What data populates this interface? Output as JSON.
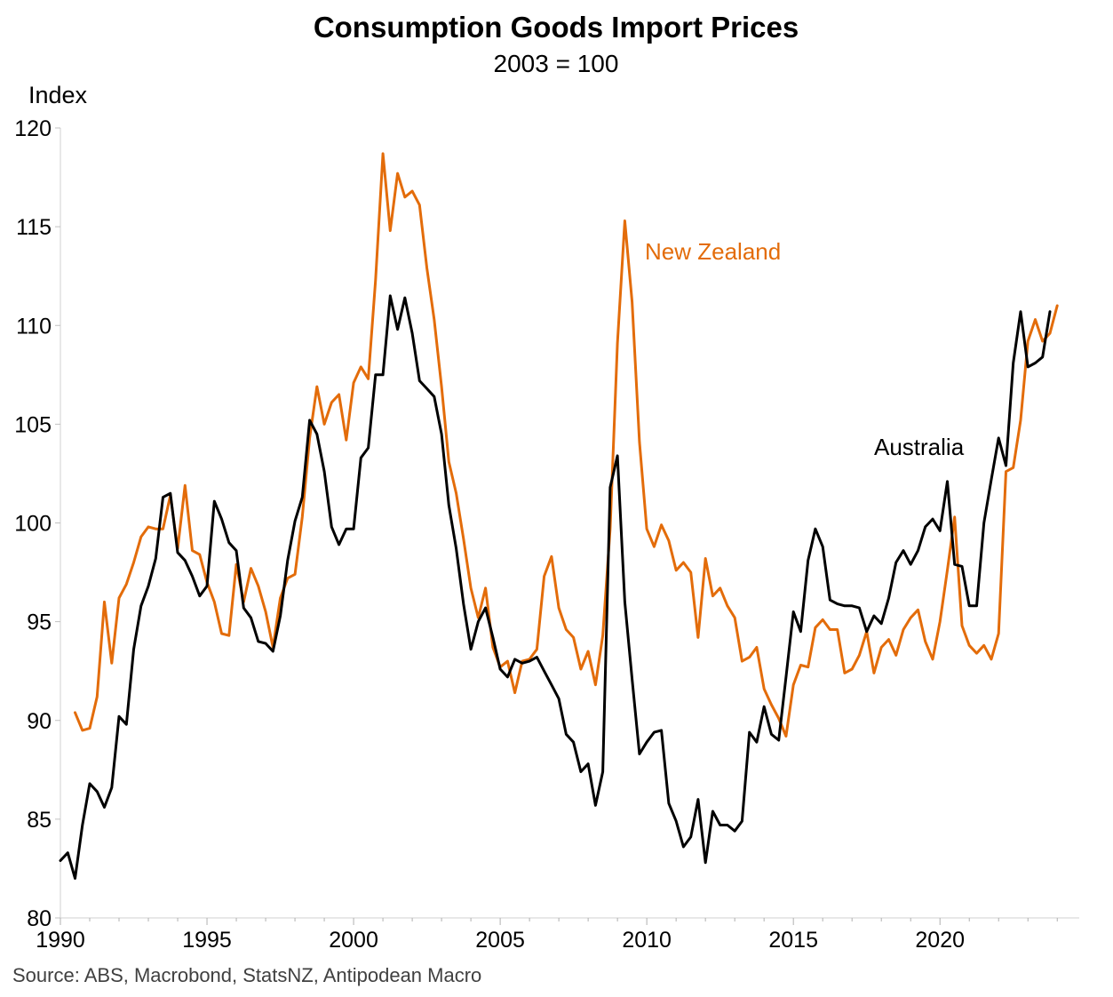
{
  "chart_data": {
    "type": "line",
    "title": "Consumption Goods Import Prices",
    "subtitle": "2003 = 100",
    "ylabel": "Index",
    "xlabel": "",
    "source": "Source: ABS, Macrobond, StatsNZ, Antipodean Macro",
    "xlim": [
      1990,
      2024.75
    ],
    "ylim": [
      80,
      120
    ],
    "x_ticks": [
      "1990",
      "1995",
      "2000",
      "2005",
      "2010",
      "2015",
      "2020"
    ],
    "y_ticks": [
      "80",
      "85",
      "90",
      "95",
      "100",
      "105",
      "110",
      "115",
      "120"
    ],
    "grid": false,
    "legend": "inline labels",
    "colors": {
      "Australia": "#000000",
      "New Zealand": "#E36C0A"
    },
    "series": [
      {
        "name": "Australia",
        "start": 1990.0,
        "step": 0.25,
        "values": [
          82.9,
          83.3,
          82.0,
          84.7,
          86.8,
          86.4,
          85.6,
          86.6,
          90.2,
          89.8,
          93.6,
          95.8,
          96.8,
          98.2,
          101.3,
          101.5,
          98.5,
          98.1,
          97.3,
          96.3,
          96.8,
          101.1,
          100.2,
          99.0,
          98.6,
          95.7,
          95.2,
          94.0,
          93.9,
          93.5,
          95.3,
          98.1,
          100.1,
          101.3,
          105.2,
          104.5,
          102.6,
          99.8,
          98.9,
          99.7,
          99.7,
          103.3,
          103.8,
          107.5,
          107.5,
          111.5,
          109.8,
          111.4,
          109.6,
          107.2,
          106.8,
          106.4,
          104.5,
          100.9,
          98.7,
          95.9,
          93.6,
          95.0,
          95.7,
          94.2,
          92.6,
          92.2,
          93.1,
          92.9,
          93.0,
          93.2,
          92.5,
          91.8,
          91.1,
          89.3,
          88.9,
          87.4,
          87.8,
          85.7,
          87.4,
          101.8,
          103.4,
          96.0,
          92.1,
          88.3,
          88.9,
          89.4,
          89.5,
          85.8,
          84.9,
          83.6,
          84.1,
          86.0,
          82.8,
          85.4,
          84.7,
          84.7,
          84.4,
          84.9,
          89.4,
          88.9,
          90.7,
          89.3,
          89.0,
          92.2,
          95.5,
          94.5,
          98.1,
          99.7,
          98.8,
          96.1,
          95.9,
          95.8,
          95.8,
          95.7,
          94.5,
          95.3,
          94.9,
          96.2,
          98.0,
          98.6,
          97.9,
          98.6,
          99.8,
          100.2,
          99.6,
          102.1,
          97.9,
          97.8,
          95.8,
          95.8,
          100.0,
          102.2,
          104.3,
          102.9,
          108.1,
          110.7,
          107.9,
          108.1,
          108.4,
          110.7
        ]
      },
      {
        "name": "New Zealand",
        "start": 1990.5,
        "step": 0.25,
        "values": [
          90.4,
          89.5,
          89.6,
          91.2,
          96.0,
          92.9,
          96.2,
          96.9,
          98.0,
          99.3,
          99.8,
          99.7,
          99.7,
          101.4,
          98.7,
          101.9,
          98.6,
          98.4,
          97.0,
          96.0,
          94.4,
          94.3,
          97.9,
          96.0,
          97.7,
          96.8,
          95.5,
          93.7,
          96.2,
          97.2,
          97.4,
          100.3,
          104.3,
          106.9,
          105.0,
          106.1,
          106.5,
          104.2,
          107.1,
          107.9,
          107.3,
          112.3,
          118.7,
          114.8,
          117.7,
          116.5,
          116.8,
          116.1,
          112.9,
          110.3,
          106.9,
          103.1,
          101.5,
          99.2,
          96.7,
          95.2,
          96.7,
          93.7,
          92.7,
          93.0,
          91.4,
          93.0,
          93.1,
          93.6,
          97.3,
          98.3,
          95.7,
          94.6,
          94.2,
          92.6,
          93.5,
          91.8,
          94.3,
          99.7,
          109.1,
          115.3,
          111.2,
          104.1,
          99.7,
          98.8,
          99.9,
          99.1,
          97.6,
          98.0,
          97.5,
          94.2,
          98.2,
          96.3,
          96.7,
          95.8,
          95.2,
          93.0,
          93.2,
          93.7,
          91.6,
          90.8,
          90.1,
          89.2,
          91.8,
          92.8,
          92.7,
          94.7,
          95.1,
          94.6,
          94.6,
          92.4,
          92.6,
          93.3,
          94.5,
          92.4,
          93.7,
          94.1,
          93.3,
          94.6,
          95.2,
          95.6,
          94.0,
          93.1,
          95.0,
          97.6,
          100.3,
          94.8,
          93.8,
          93.4,
          93.8,
          93.1,
          94.4,
          102.6,
          102.8,
          105.2,
          109.2,
          110.3,
          109.2,
          109.6,
          111.0
        ]
      }
    ]
  }
}
